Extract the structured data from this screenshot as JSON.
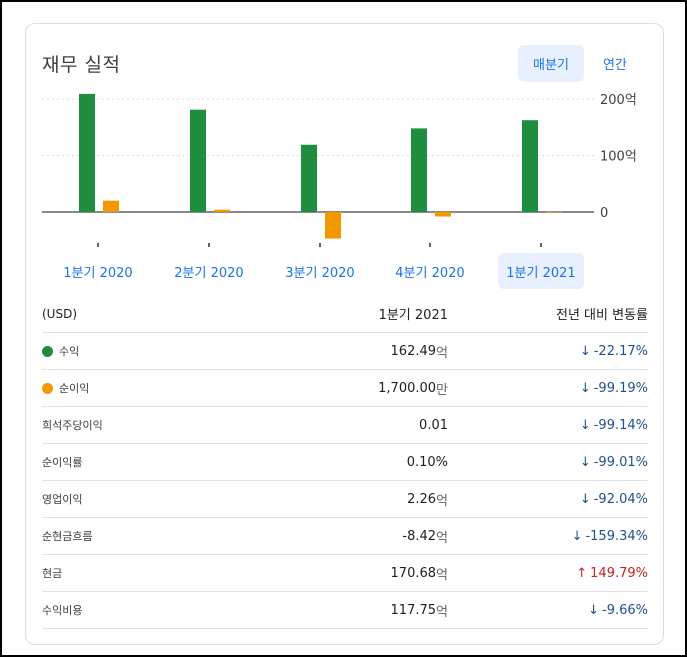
{
  "title": "재무 실적",
  "toggle": {
    "quarterly": "매분기",
    "annual": "연간"
  },
  "colors": {
    "revenue": "#1e8e3e",
    "net_income": "#f29900",
    "accent": "#1a73e8",
    "down": "#1f4f8f",
    "up": "#c5221f"
  },
  "chart_data": {
    "type": "bar",
    "categories": [
      "1분기 2020",
      "2분기 2020",
      "3분기 2020",
      "4분기 2020",
      "1분기 2021"
    ],
    "series": [
      {
        "name": "수익",
        "values": [
          209,
          181,
          119,
          148,
          162.49
        ]
      },
      {
        "name": "순이익",
        "values": [
          20,
          4,
          -47,
          -8,
          0.17
        ]
      }
    ],
    "yticks": [
      "200억",
      "100억",
      "0"
    ],
    "ylim": [
      -60,
      210
    ],
    "grid": true
  },
  "table": {
    "header": {
      "label": "(USD)",
      "period": "1분기 2021",
      "change": "전년 대비 변동률"
    },
    "rows": [
      {
        "label": "수익",
        "dot": "#1e8e3e",
        "value": "162.49",
        "unit": "억",
        "direction": "down",
        "arrow": "↓",
        "change": "-22.17%"
      },
      {
        "label": "순이익",
        "dot": "#f29900",
        "value": "1,700.00",
        "unit": "만",
        "direction": "down",
        "arrow": "↓",
        "change": "-99.19%"
      },
      {
        "label": "희석주당이익",
        "value": "0.01",
        "unit": "",
        "direction": "down",
        "arrow": "↓",
        "change": "-99.14%"
      },
      {
        "label": "순이익률",
        "value": "0.10%",
        "unit": "",
        "direction": "down",
        "arrow": "↓",
        "change": "-99.01%"
      },
      {
        "label": "영업이익",
        "value": "2.26",
        "unit": "억",
        "direction": "down",
        "arrow": "↓",
        "change": "-92.04%"
      },
      {
        "label": "순현금흐름",
        "value": "-8.42",
        "unit": "억",
        "direction": "down",
        "arrow": "↓",
        "change": "-159.34%"
      },
      {
        "label": "현금",
        "value": "170.68",
        "unit": "억",
        "direction": "up",
        "arrow": "↑",
        "change": "149.79%"
      },
      {
        "label": "수익비용",
        "value": "117.75",
        "unit": "억",
        "direction": "down",
        "arrow": "↓",
        "change": "-9.66%"
      }
    ]
  }
}
